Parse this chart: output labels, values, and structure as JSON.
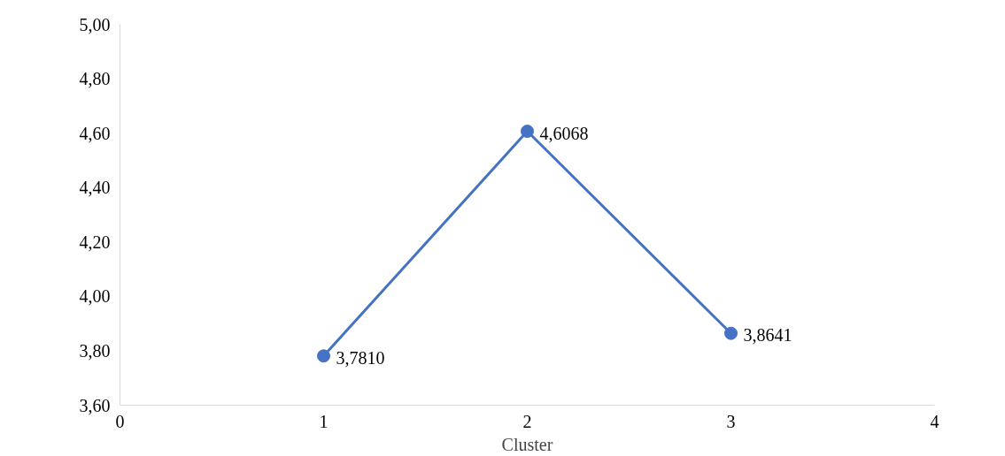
{
  "chart_data": {
    "type": "line",
    "xlabel": "Cluster",
    "x": [
      1,
      2,
      3
    ],
    "series": [
      {
        "color": "#4472c4",
        "values": [
          3.781,
          4.6068,
          3.8641
        ],
        "value_labels": [
          "3,7810",
          "4,6068",
          "3,8641"
        ]
      }
    ],
    "xlim": [
      0,
      4
    ],
    "xticks": [
      0,
      1,
      2,
      3,
      4
    ],
    "ylim": [
      3.6,
      5.0
    ],
    "yticks": [
      {
        "value": 3.6,
        "label": "3,60"
      },
      {
        "value": 3.8,
        "label": "3,80"
      },
      {
        "value": 4.0,
        "label": "4,00"
      },
      {
        "value": 4.2,
        "label": "4,20"
      },
      {
        "value": 4.4,
        "label": "4,40"
      },
      {
        "value": 4.6,
        "label": "4,60"
      },
      {
        "value": 4.8,
        "label": "4,80"
      },
      {
        "value": 5.0,
        "label": "5,00"
      }
    ],
    "marker": "circle",
    "line_style": "solid",
    "grid": false
  }
}
